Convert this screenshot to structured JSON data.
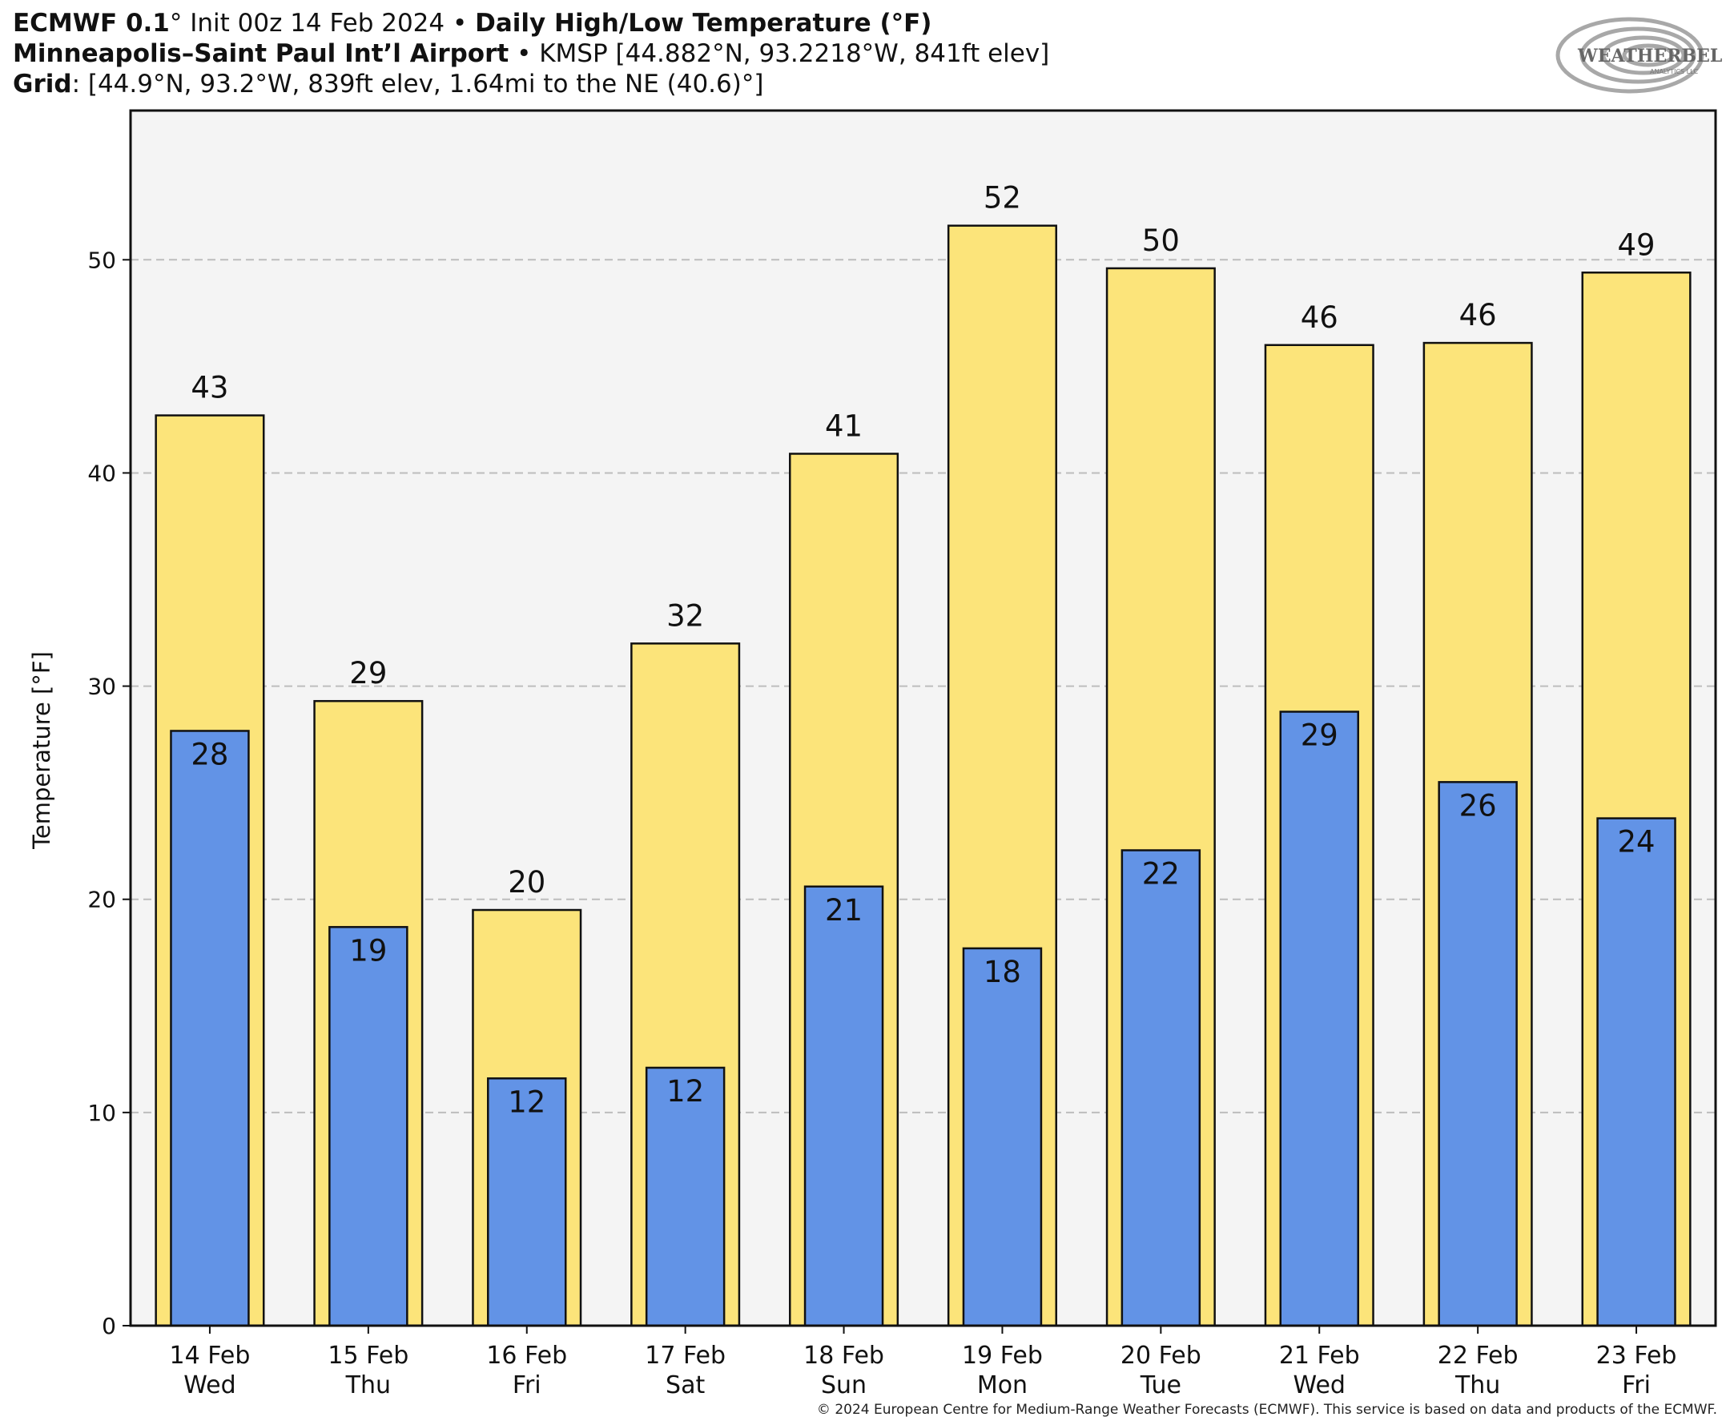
{
  "header": {
    "line1_model": "ECMWF 0.1",
    "line1_deg": "°",
    "line1_init": " Init 00z 14 Feb 2024",
    "line1_sep": " • ",
    "line1_title": "Daily High/Low Temperature (°F)",
    "line2_station": "Minneapolis–Saint Paul Int’l Airport",
    "line2_sep": " • ",
    "line2_info": "KMSP [44.882°N, 93.2218°W, 841ft elev]",
    "line3_label": "Grid",
    "line3_info": ": [44.9°N, 93.2°W, 839ft elev, 1.64mi to the NE (40.6)°]"
  },
  "logo": {
    "text": "WEATHERBELL",
    "subtext": "ANALYTICS LLC"
  },
  "footer": "© 2024 European Centre for Medium-Range Weather Forecasts (ECMWF). This service is based on data and products of the ECMWF.",
  "colors": {
    "high": "#fce47a",
    "low": "#6293e6",
    "plot_bg": "#f4f4f4",
    "grid": "#bdbdbd",
    "outline": "#111111"
  },
  "chart_data": {
    "type": "bar",
    "categories": [
      "14 Feb",
      "15 Feb",
      "16 Feb",
      "17 Feb",
      "18 Feb",
      "19 Feb",
      "20 Feb",
      "21 Feb",
      "22 Feb",
      "23 Feb"
    ],
    "category_days": [
      "Wed",
      "Thu",
      "Fri",
      "Sat",
      "Sun",
      "Mon",
      "Tue",
      "Wed",
      "Thu",
      "Fri"
    ],
    "series": [
      {
        "values": [
          42.7,
          29.3,
          19.5,
          32.0,
          40.9,
          51.6,
          49.6,
          46.0,
          46.1,
          49.4
        ],
        "labels": [
          "43",
          "29",
          "20",
          "32",
          "41",
          "52",
          "50",
          "46",
          "46",
          "49"
        ]
      },
      {
        "values": [
          27.9,
          18.7,
          11.6,
          12.1,
          20.6,
          17.7,
          22.3,
          28.8,
          25.5,
          23.8
        ],
        "labels": [
          "28",
          "19",
          "12",
          "12",
          "21",
          "18",
          "22",
          "29",
          "26",
          "24"
        ]
      }
    ],
    "ylabel": "Temperature [°F]",
    "xlabel": "",
    "ylim": [
      0,
      57
    ],
    "yticks": [
      0,
      10,
      20,
      30,
      40,
      50
    ],
    "grid": true
  }
}
